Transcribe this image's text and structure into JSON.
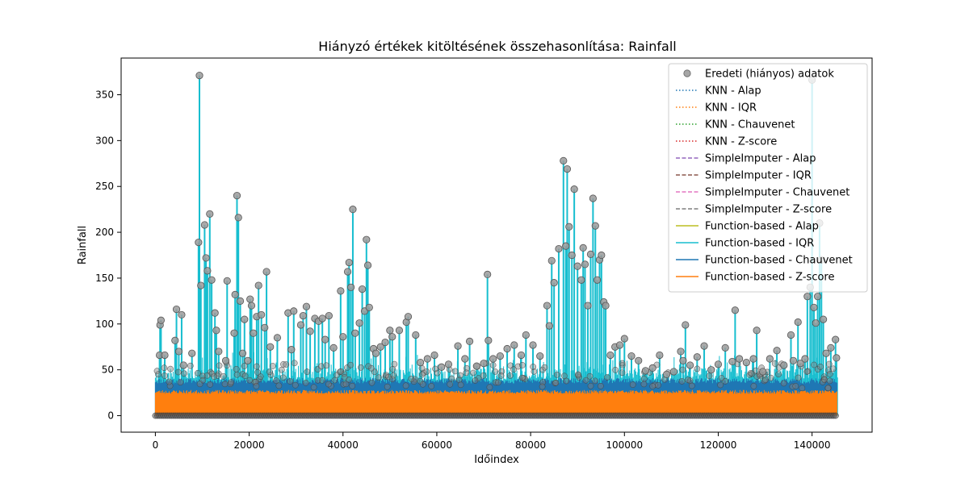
{
  "chart_data": {
    "type": "line",
    "title": "Hiányzó értékek kitöltésének összehasonlítása: Rainfall",
    "xlabel": "Időindex",
    "ylabel": "Rainfall",
    "xlim": [
      -7300,
      152800
    ],
    "ylim": [
      -18,
      390
    ],
    "x_ticks": [
      0,
      20000,
      40000,
      60000,
      80000,
      100000,
      120000,
      140000
    ],
    "x_tick_labels": [
      "0",
      "20000",
      "40000",
      "60000",
      "80000",
      "100000",
      "120000",
      "140000"
    ],
    "y_ticks": [
      0,
      50,
      100,
      150,
      200,
      250,
      300,
      350
    ],
    "y_tick_labels": [
      "0",
      "50",
      "100",
      "150",
      "200",
      "250",
      "300",
      "350"
    ],
    "grid": false,
    "legend_position": "top-right",
    "n_points": 145460,
    "series": [
      {
        "name": "Eredeti (hiányos) adatok",
        "style": "markers",
        "color": "#808080"
      },
      {
        "name": "KNN - Alap",
        "style": "dotted",
        "color": "#1f77b4"
      },
      {
        "name": "KNN - IQR",
        "style": "dotted",
        "color": "#ff7f0e"
      },
      {
        "name": "KNN - Chauvenet",
        "style": "dotted",
        "color": "#2ca02c"
      },
      {
        "name": "KNN - Z-score",
        "style": "dotted",
        "color": "#d62728"
      },
      {
        "name": "SimpleImputer - Alap",
        "style": "dashed",
        "color": "#9467bd"
      },
      {
        "name": "SimpleImputer - IQR",
        "style": "dashed",
        "color": "#8c564b"
      },
      {
        "name": "SimpleImputer - Chauvenet",
        "style": "dashed",
        "color": "#e377c2"
      },
      {
        "name": "SimpleImputer - Z-score",
        "style": "dashed",
        "color": "#7f7f7f"
      },
      {
        "name": "Function-based - Alap",
        "style": "solid",
        "color": "#bcbd22"
      },
      {
        "name": "Function-based - IQR",
        "style": "solid",
        "color": "#17becf"
      },
      {
        "name": "Function-based - Chauvenet",
        "style": "solid",
        "color": "#1f77b4"
      },
      {
        "name": "Function-based - Z-score",
        "style": "solid",
        "color": "#ff7f0e"
      }
    ],
    "orange_band_max": 27,
    "blue_band_max": 37,
    "peaks": [
      {
        "x": 900,
        "y": 66
      },
      {
        "x": 1000,
        "y": 99
      },
      {
        "x": 1200,
        "y": 104
      },
      {
        "x": 2000,
        "y": 66
      },
      {
        "x": 4200,
        "y": 82
      },
      {
        "x": 4500,
        "y": 116
      },
      {
        "x": 5000,
        "y": 70
      },
      {
        "x": 5600,
        "y": 110
      },
      {
        "x": 6000,
        "y": 55
      },
      {
        "x": 7800,
        "y": 68
      },
      {
        "x": 9200,
        "y": 189
      },
      {
        "x": 9400,
        "y": 371
      },
      {
        "x": 9700,
        "y": 142
      },
      {
        "x": 10500,
        "y": 208
      },
      {
        "x": 10800,
        "y": 172
      },
      {
        "x": 11100,
        "y": 158
      },
      {
        "x": 11600,
        "y": 220
      },
      {
        "x": 12000,
        "y": 148
      },
      {
        "x": 12700,
        "y": 112
      },
      {
        "x": 13000,
        "y": 93
      },
      {
        "x": 13500,
        "y": 70
      },
      {
        "x": 15000,
        "y": 60
      },
      {
        "x": 15300,
        "y": 147
      },
      {
        "x": 16800,
        "y": 90
      },
      {
        "x": 17000,
        "y": 132
      },
      {
        "x": 17400,
        "y": 240
      },
      {
        "x": 17700,
        "y": 216
      },
      {
        "x": 18100,
        "y": 125
      },
      {
        "x": 18600,
        "y": 68
      },
      {
        "x": 19000,
        "y": 105
      },
      {
        "x": 19700,
        "y": 60
      },
      {
        "x": 20200,
        "y": 127
      },
      {
        "x": 20500,
        "y": 120
      },
      {
        "x": 20900,
        "y": 90
      },
      {
        "x": 21600,
        "y": 108
      },
      {
        "x": 22000,
        "y": 142
      },
      {
        "x": 22600,
        "y": 110
      },
      {
        "x": 23300,
        "y": 96
      },
      {
        "x": 23700,
        "y": 157
      },
      {
        "x": 24500,
        "y": 75
      },
      {
        "x": 26000,
        "y": 85
      },
      {
        "x": 28300,
        "y": 112
      },
      {
        "x": 29000,
        "y": 72
      },
      {
        "x": 29500,
        "y": 114
      },
      {
        "x": 31000,
        "y": 99
      },
      {
        "x": 31500,
        "y": 109
      },
      {
        "x": 32200,
        "y": 119
      },
      {
        "x": 33000,
        "y": 92
      },
      {
        "x": 34000,
        "y": 106
      },
      {
        "x": 34800,
        "y": 103
      },
      {
        "x": 35600,
        "y": 106
      },
      {
        "x": 36200,
        "y": 83
      },
      {
        "x": 37000,
        "y": 109
      },
      {
        "x": 38000,
        "y": 74
      },
      {
        "x": 39500,
        "y": 136
      },
      {
        "x": 40000,
        "y": 86
      },
      {
        "x": 41000,
        "y": 157
      },
      {
        "x": 41300,
        "y": 167
      },
      {
        "x": 41700,
        "y": 140
      },
      {
        "x": 42100,
        "y": 225
      },
      {
        "x": 42600,
        "y": 90
      },
      {
        "x": 43500,
        "y": 101
      },
      {
        "x": 44100,
        "y": 138
      },
      {
        "x": 44600,
        "y": 114
      },
      {
        "x": 45000,
        "y": 192
      },
      {
        "x": 45300,
        "y": 164
      },
      {
        "x": 45600,
        "y": 118
      },
      {
        "x": 46500,
        "y": 73
      },
      {
        "x": 47000,
        "y": 68
      },
      {
        "x": 48000,
        "y": 75
      },
      {
        "x": 49000,
        "y": 80
      },
      {
        "x": 50000,
        "y": 93
      },
      {
        "x": 50500,
        "y": 86
      },
      {
        "x": 52000,
        "y": 93
      },
      {
        "x": 53500,
        "y": 102
      },
      {
        "x": 53900,
        "y": 108
      },
      {
        "x": 55500,
        "y": 88
      },
      {
        "x": 56500,
        "y": 58
      },
      {
        "x": 58000,
        "y": 62
      },
      {
        "x": 59500,
        "y": 66
      },
      {
        "x": 61000,
        "y": 53
      },
      {
        "x": 62500,
        "y": 56
      },
      {
        "x": 64500,
        "y": 76
      },
      {
        "x": 66000,
        "y": 62
      },
      {
        "x": 67000,
        "y": 81
      },
      {
        "x": 68500,
        "y": 54
      },
      {
        "x": 70000,
        "y": 57
      },
      {
        "x": 70800,
        "y": 154
      },
      {
        "x": 71000,
        "y": 82
      },
      {
        "x": 72000,
        "y": 62
      },
      {
        "x": 73500,
        "y": 65
      },
      {
        "x": 75000,
        "y": 73
      },
      {
        "x": 76500,
        "y": 77
      },
      {
        "x": 78000,
        "y": 66
      },
      {
        "x": 79000,
        "y": 88
      },
      {
        "x": 80500,
        "y": 77
      },
      {
        "x": 82000,
        "y": 65
      },
      {
        "x": 83500,
        "y": 120
      },
      {
        "x": 84000,
        "y": 98
      },
      {
        "x": 84500,
        "y": 169
      },
      {
        "x": 85000,
        "y": 145
      },
      {
        "x": 86000,
        "y": 182
      },
      {
        "x": 87000,
        "y": 278
      },
      {
        "x": 87500,
        "y": 185
      },
      {
        "x": 87800,
        "y": 269
      },
      {
        "x": 88200,
        "y": 206
      },
      {
        "x": 88800,
        "y": 175
      },
      {
        "x": 89300,
        "y": 247
      },
      {
        "x": 90000,
        "y": 163
      },
      {
        "x": 90800,
        "y": 148
      },
      {
        "x": 91200,
        "y": 183
      },
      {
        "x": 91600,
        "y": 165
      },
      {
        "x": 92200,
        "y": 120
      },
      {
        "x": 92800,
        "y": 176
      },
      {
        "x": 93300,
        "y": 237
      },
      {
        "x": 93800,
        "y": 207
      },
      {
        "x": 94200,
        "y": 148
      },
      {
        "x": 94700,
        "y": 170
      },
      {
        "x": 95100,
        "y": 175
      },
      {
        "x": 95600,
        "y": 124
      },
      {
        "x": 96000,
        "y": 120
      },
      {
        "x": 97000,
        "y": 66
      },
      {
        "x": 98000,
        "y": 75
      },
      {
        "x": 99000,
        "y": 77
      },
      {
        "x": 100000,
        "y": 84
      },
      {
        "x": 101500,
        "y": 65
      },
      {
        "x": 103000,
        "y": 60
      },
      {
        "x": 104500,
        "y": 49
      },
      {
        "x": 106000,
        "y": 52
      },
      {
        "x": 107500,
        "y": 66
      },
      {
        "x": 109000,
        "y": 45
      },
      {
        "x": 110500,
        "y": 48
      },
      {
        "x": 112000,
        "y": 70
      },
      {
        "x": 112500,
        "y": 60
      },
      {
        "x": 113000,
        "y": 99
      },
      {
        "x": 114000,
        "y": 55
      },
      {
        "x": 115500,
        "y": 64
      },
      {
        "x": 117000,
        "y": 76
      },
      {
        "x": 118500,
        "y": 50
      },
      {
        "x": 120000,
        "y": 56
      },
      {
        "x": 121500,
        "y": 74
      },
      {
        "x": 123000,
        "y": 59
      },
      {
        "x": 123600,
        "y": 115
      },
      {
        "x": 124500,
        "y": 62
      },
      {
        "x": 126000,
        "y": 58
      },
      {
        "x": 127500,
        "y": 62
      },
      {
        "x": 128200,
        "y": 93
      },
      {
        "x": 129500,
        "y": 48
      },
      {
        "x": 131000,
        "y": 62
      },
      {
        "x": 132500,
        "y": 71
      },
      {
        "x": 134000,
        "y": 55
      },
      {
        "x": 135500,
        "y": 88
      },
      {
        "x": 136000,
        "y": 60
      },
      {
        "x": 137000,
        "y": 102
      },
      {
        "x": 137500,
        "y": 57
      },
      {
        "x": 138500,
        "y": 62
      },
      {
        "x": 139000,
        "y": 130
      },
      {
        "x": 139600,
        "y": 140
      },
      {
        "x": 140000,
        "y": 366
      },
      {
        "x": 140400,
        "y": 118
      },
      {
        "x": 140800,
        "y": 101
      },
      {
        "x": 141200,
        "y": 130
      },
      {
        "x": 141600,
        "y": 210
      },
      {
        "x": 142000,
        "y": 170
      },
      {
        "x": 142400,
        "y": 105
      },
      {
        "x": 143000,
        "y": 68
      },
      {
        "x": 144000,
        "y": 74
      },
      {
        "x": 145000,
        "y": 83
      },
      {
        "x": 145200,
        "y": 63
      }
    ]
  }
}
